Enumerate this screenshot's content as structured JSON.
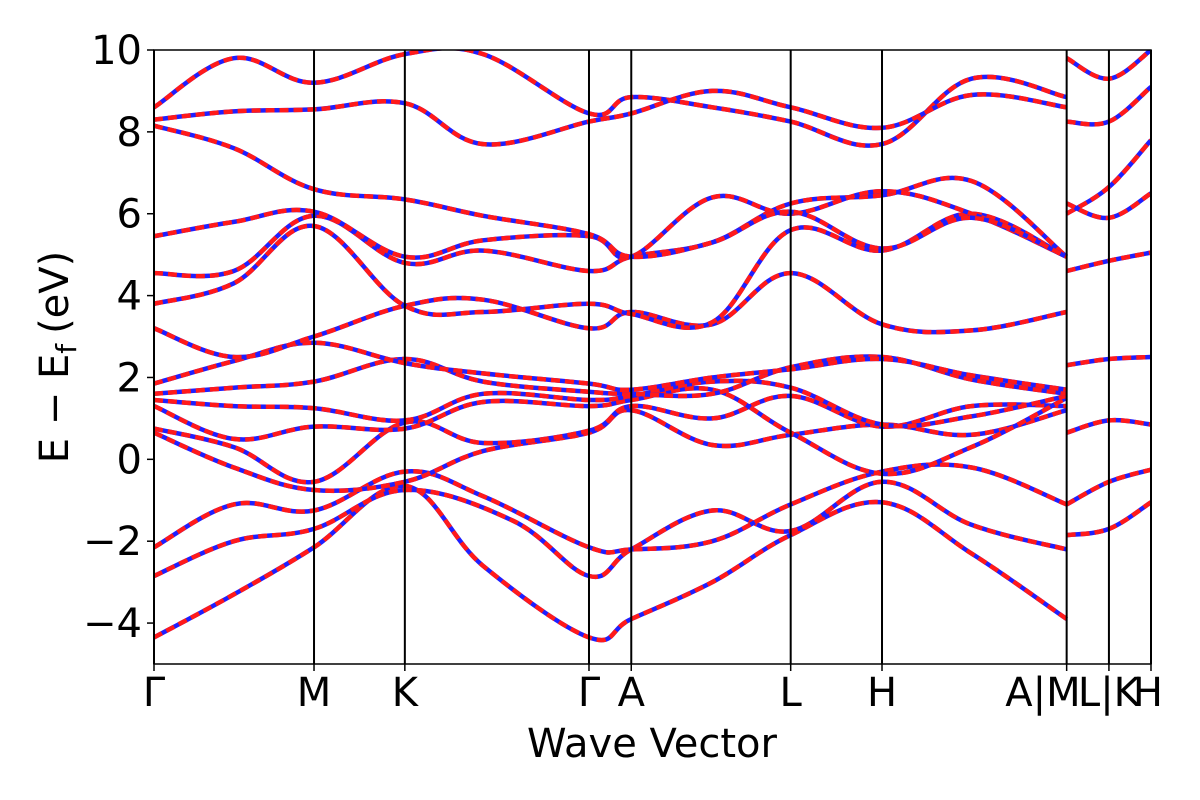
{
  "chart_data": {
    "type": "line",
    "xlabel": "Wave Vector",
    "ylabel_main": "E − E",
    "ylabel_sub": "f",
    "ylabel_unit": "(eV)",
    "ylim": [
      -5,
      10
    ],
    "yticks": [
      -4,
      -2,
      0,
      2,
      4,
      6,
      8,
      10
    ],
    "ytick_labels": [
      "−4",
      "−2",
      "0",
      "2",
      "4",
      "6",
      "8",
      "10"
    ],
    "xlim": [
      0,
      1
    ],
    "kpoints": [
      {
        "label": "Γ",
        "x": 0.0
      },
      {
        "label": "M",
        "x": 0.1605
      },
      {
        "label": "K",
        "x": 0.2516
      },
      {
        "label": "Γ",
        "x": 0.4363
      },
      {
        "label": "A",
        "x": 0.4787
      },
      {
        "label": "L",
        "x": 0.6386
      },
      {
        "label": "H",
        "x": 0.7302
      },
      {
        "label": "A|M",
        "x": 0.9154
      },
      {
        "label": "L|K",
        "x": 0.9578
      },
      {
        "label": "H",
        "x": 1.0
      }
    ],
    "grid": false,
    "colors": {
      "solid": "#1f1fff",
      "dashed": "#ff1a1a"
    },
    "series": [
      {
        "x": [
          0,
          0.08,
          0.1605,
          0.2516,
          0.33,
          0.4363,
          0.4787,
          0.56,
          0.6386,
          0.7302,
          0.82,
          0.9154
        ],
        "values": [
          -4.35,
          -3.3,
          -2.15,
          -0.65,
          -2.6,
          -4.35,
          -3.9,
          -3.0,
          -1.85,
          -1.05,
          -2.3,
          -3.9
        ]
      },
      {
        "x": [
          0,
          0.08,
          0.1605,
          0.2516,
          0.36,
          0.4363,
          0.4787,
          0.56,
          0.6386,
          0.7302,
          0.82,
          0.9154
        ],
        "values": [
          -2.85,
          -2.0,
          -1.7,
          -0.75,
          -1.5,
          -2.85,
          -2.2,
          -1.25,
          -1.75,
          -0.55,
          -1.6,
          -2.2
        ]
      },
      {
        "x": [
          0,
          0.08,
          0.1605,
          0.2516,
          0.33,
          0.4363,
          0.4787,
          0.56,
          0.6386,
          0.7302,
          0.82,
          0.9154
        ],
        "values": [
          -2.15,
          -1.1,
          -1.25,
          -0.3,
          -0.9,
          -2.15,
          -2.2,
          -2.0,
          -1.1,
          -0.3,
          -0.2,
          -1.1
        ]
      },
      {
        "x": [
          0,
          0.08,
          0.1605,
          0.2516,
          0.33,
          0.4363,
          0.4787,
          0.56,
          0.6386,
          0.7302,
          0.82,
          0.9154
        ],
        "values": [
          0.65,
          -0.2,
          -0.75,
          -0.55,
          0.2,
          0.65,
          1.2,
          0.35,
          0.6,
          0.85,
          0.6,
          1.2
        ]
      },
      {
        "x": [
          0,
          0.08,
          0.1605,
          0.2516,
          0.33,
          0.4363,
          0.4787,
          0.56,
          0.6386,
          0.7302,
          0.82,
          0.9154
        ],
        "values": [
          0.75,
          0.3,
          -0.55,
          0.9,
          0.4,
          0.7,
          1.3,
          1.0,
          1.55,
          0.8,
          1.3,
          1.3
        ]
      },
      {
        "x": [
          0,
          0.08,
          0.1605,
          0.2516,
          0.33,
          0.4363,
          0.4787,
          0.56,
          0.6386,
          0.7302,
          0.82,
          0.9154
        ],
        "values": [
          1.3,
          0.5,
          0.8,
          0.75,
          1.4,
          1.3,
          1.45,
          1.7,
          0.65,
          -0.35,
          0.3,
          1.5
        ]
      },
      {
        "x": [
          0,
          0.08,
          0.1605,
          0.2516,
          0.33,
          0.4363,
          0.4787,
          0.56,
          0.6386,
          0.7302,
          0.82,
          0.9154
        ],
        "values": [
          1.45,
          1.3,
          1.25,
          0.95,
          1.6,
          1.45,
          1.55,
          1.9,
          1.75,
          0.85,
          1.05,
          1.55
        ]
      },
      {
        "x": [
          0,
          0.08,
          0.1605,
          0.2516,
          0.33,
          0.4363,
          0.4787,
          0.56,
          0.6386,
          0.7302,
          0.82,
          0.9154
        ],
        "values": [
          1.6,
          1.75,
          1.9,
          2.45,
          1.9,
          1.65,
          1.6,
          1.6,
          2.25,
          2.5,
          1.95,
          1.6
        ]
      },
      {
        "x": [
          0,
          0.08,
          0.1605,
          0.2516,
          0.33,
          0.4363,
          0.4787,
          0.56,
          0.6386,
          0.7302,
          0.82,
          0.9154
        ],
        "values": [
          1.85,
          2.4,
          2.85,
          2.35,
          2.1,
          1.85,
          1.7,
          2.0,
          2.2,
          2.45,
          2.05,
          1.7
        ]
      },
      {
        "x": [
          0,
          0.08,
          0.1605,
          0.2516,
          0.33,
          0.4363,
          0.4787,
          0.56,
          0.6386,
          0.7302,
          0.82,
          0.9154
        ],
        "values": [
          3.2,
          2.5,
          3.0,
          3.75,
          3.9,
          3.2,
          3.6,
          3.3,
          4.55,
          3.3,
          3.15,
          3.6
        ]
      },
      {
        "x": [
          0,
          0.08,
          0.1605,
          0.2516,
          0.33,
          0.4363,
          0.4787,
          0.56,
          0.6386,
          0.7302,
          0.82,
          0.9154
        ],
        "values": [
          3.8,
          4.3,
          5.7,
          3.75,
          3.6,
          3.8,
          3.55,
          3.35,
          5.6,
          5.1,
          6.0,
          4.95
        ]
      },
      {
        "x": [
          0,
          0.08,
          0.1605,
          0.2516,
          0.33,
          0.4363,
          0.4787,
          0.56,
          0.6386,
          0.7302,
          0.82,
          0.9154
        ],
        "values": [
          4.55,
          4.6,
          5.95,
          4.8,
          5.1,
          4.6,
          4.95,
          5.3,
          6.25,
          6.45,
          6.8,
          4.95
        ]
      },
      {
        "x": [
          0,
          0.08,
          0.1605,
          0.2516,
          0.33,
          0.4363,
          0.4787,
          0.56,
          0.6386,
          0.7302,
          0.82,
          0.9154
        ],
        "values": [
          5.45,
          5.8,
          6.05,
          4.95,
          5.35,
          5.45,
          4.95,
          6.4,
          6.0,
          6.55,
          6.0,
          4.95
        ]
      },
      {
        "x": [
          0,
          0.08,
          0.1605,
          0.2516,
          0.33,
          0.4363,
          0.4787,
          0.56,
          0.6386,
          0.7302,
          0.82,
          0.9154
        ],
        "values": [
          8.15,
          7.6,
          6.6,
          6.35,
          5.95,
          5.5,
          4.95,
          5.3,
          6.05,
          5.15,
          5.9,
          4.95
        ]
      },
      {
        "x": [
          0,
          0.08,
          0.1605,
          0.2516,
          0.33,
          0.4363,
          0.4787,
          0.56,
          0.6386,
          0.7302,
          0.82,
          0.9154
        ],
        "values": [
          8.6,
          9.8,
          9.2,
          9.9,
          9.9,
          8.45,
          8.85,
          8.6,
          8.25,
          7.7,
          9.3,
          8.85
        ]
      },
      {
        "x": [
          0,
          0.08,
          0.1605,
          0.2516,
          0.33,
          0.4363,
          0.4787,
          0.56,
          0.6386,
          0.7302,
          0.82,
          0.9154
        ],
        "values": [
          8.3,
          8.5,
          8.55,
          8.7,
          7.7,
          8.25,
          8.45,
          9.0,
          8.6,
          8.1,
          8.9,
          8.6
        ]
      },
      {
        "x": [
          0.9154,
          0.9578,
          1.0
        ],
        "values": [
          -1.85,
          -1.7,
          -1.05
        ]
      },
      {
        "x": [
          0.9154,
          0.9578,
          1.0
        ],
        "values": [
          -1.1,
          -0.55,
          -0.25
        ]
      },
      {
        "x": [
          0.9154,
          0.9578,
          1.0
        ],
        "values": [
          0.65,
          0.95,
          0.85
        ]
      },
      {
        "x": [
          0.9154,
          0.9578,
          1.0
        ],
        "values": [
          2.3,
          2.45,
          2.5
        ]
      },
      {
        "x": [
          0.9154,
          0.9578,
          1.0
        ],
        "values": [
          4.6,
          4.85,
          5.05
        ]
      },
      {
        "x": [
          0.9154,
          0.9578,
          1.0
        ],
        "values": [
          6.0,
          6.65,
          7.8
        ]
      },
      {
        "x": [
          0.9154,
          0.9578,
          1.0
        ],
        "values": [
          6.25,
          5.9,
          6.5
        ]
      },
      {
        "x": [
          0.9154,
          0.9578,
          1.0
        ],
        "values": [
          8.25,
          8.25,
          9.1
        ]
      },
      {
        "x": [
          0.9154,
          0.9578,
          1.0
        ],
        "values": [
          9.8,
          9.3,
          10.0
        ]
      }
    ]
  }
}
